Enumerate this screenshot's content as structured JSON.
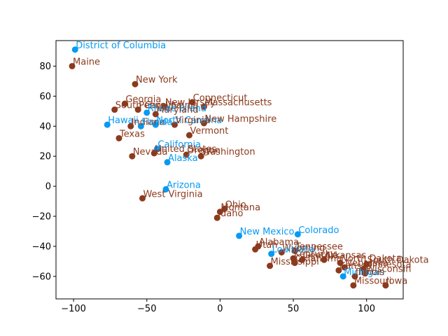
{
  "chart_data": {
    "type": "scatter",
    "title": "",
    "xlabel": "",
    "ylabel": "",
    "xlim": [
      -112,
      125
    ],
    "ylim": [
      -75,
      97
    ],
    "x_ticks": [
      -100,
      -50,
      0,
      50,
      100
    ],
    "y_ticks": [
      -60,
      -40,
      -20,
      0,
      20,
      40,
      60,
      80
    ],
    "grid": false,
    "legend": "none",
    "colors": {
      "red": "#8b3a1e",
      "blue": "#069af3"
    },
    "points": [
      {
        "label": "District of Columbia",
        "x": -99,
        "y": 91,
        "color": "blue"
      },
      {
        "label": "Maine",
        "x": -101,
        "y": 80,
        "color": "red"
      },
      {
        "label": "New York",
        "x": -58,
        "y": 68,
        "color": "red"
      },
      {
        "label": "Georgia",
        "x": -65,
        "y": 55,
        "color": "red"
      },
      {
        "label": "Connecticut",
        "x": -19,
        "y": 56,
        "color": "red"
      },
      {
        "label": "New Jersey",
        "x": -38,
        "y": 53,
        "color": "red"
      },
      {
        "label": "Massachusetts",
        "x": -11,
        "y": 53,
        "color": "red"
      },
      {
        "label": "South Carolina",
        "x": -72,
        "y": 51,
        "color": "red"
      },
      {
        "label": "Pennsylvania",
        "x": -56,
        "y": 51,
        "color": "red"
      },
      {
        "label": "Rhode Island",
        "x": -50,
        "y": 49,
        "color": "blue"
      },
      {
        "label": "Maryland",
        "x": -44,
        "y": 48,
        "color": "red"
      },
      {
        "label": "Hawaii",
        "x": -77,
        "y": 41,
        "color": "blue"
      },
      {
        "label": "Indiana",
        "x": -61,
        "y": 40,
        "color": "red"
      },
      {
        "label": "Florida",
        "x": -54,
        "y": 40,
        "color": "blue"
      },
      {
        "label": "North Carolina",
        "x": -44,
        "y": 41,
        "color": "blue"
      },
      {
        "label": "Virginia",
        "x": -31,
        "y": 41,
        "color": "red"
      },
      {
        "label": "New Hampshire",
        "x": -11,
        "y": 42,
        "color": "red"
      },
      {
        "label": "Vermont",
        "x": -21,
        "y": 34,
        "color": "red"
      },
      {
        "label": "Texas",
        "x": -69,
        "y": 32,
        "color": "red"
      },
      {
        "label": "California",
        "x": -43,
        "y": 25,
        "color": "blue"
      },
      {
        "label": "Nevada",
        "x": -60,
        "y": 20,
        "color": "red"
      },
      {
        "label": "United States",
        "x": -45,
        "y": 22,
        "color": "red"
      },
      {
        "label": "Oregon",
        "x": -23,
        "y": 21,
        "color": "red"
      },
      {
        "label": "Washington",
        "x": -13,
        "y": 20,
        "color": "red"
      },
      {
        "label": "Alaska",
        "x": -36,
        "y": 16,
        "color": "blue"
      },
      {
        "label": "Arizona",
        "x": -37,
        "y": -2,
        "color": "blue"
      },
      {
        "label": "West Virginia",
        "x": -53,
        "y": -8,
        "color": "red"
      },
      {
        "label": "Ohio",
        "x": 3,
        "y": -15,
        "color": "red"
      },
      {
        "label": "Montana",
        "x": 0,
        "y": -17,
        "color": "red"
      },
      {
        "label": "Idaho",
        "x": -2,
        "y": -21,
        "color": "red"
      },
      {
        "label": "New Mexico",
        "x": 13,
        "y": -33,
        "color": "blue"
      },
      {
        "label": "Colorado",
        "x": 53,
        "y": -32,
        "color": "blue"
      },
      {
        "label": "Alabama",
        "x": 26,
        "y": -40,
        "color": "red"
      },
      {
        "label": "Utah",
        "x": 24,
        "y": -42,
        "color": "red"
      },
      {
        "label": "Wyoming",
        "x": 42,
        "y": -44,
        "color": "red"
      },
      {
        "label": "Tennessee",
        "x": 51,
        "y": -43,
        "color": "red"
      },
      {
        "label": "Louisiana",
        "x": 35,
        "y": -45,
        "color": "blue"
      },
      {
        "label": "Kentucky",
        "x": 50,
        "y": -48,
        "color": "red"
      },
      {
        "label": "Georgia",
        "x": 56,
        "y": -49,
        "color": "red"
      },
      {
        "label": "Arkansas",
        "x": 71,
        "y": -49,
        "color": "red"
      },
      {
        "label": "Mississippi",
        "x": 34,
        "y": -53,
        "color": "red"
      },
      {
        "label": "Oklahoma",
        "x": 51,
        "y": -51,
        "color": "red"
      },
      {
        "label": "North Dakota",
        "x": 82,
        "y": -51,
        "color": "red"
      },
      {
        "label": "South Dakota",
        "x": 100,
        "y": -52,
        "color": "red"
      },
      {
        "label": "Nebraska",
        "x": 85,
        "y": -54,
        "color": "red"
      },
      {
        "label": "Minnesota",
        "x": 98,
        "y": -55,
        "color": "red"
      },
      {
        "label": "Kansas",
        "x": 81,
        "y": -56,
        "color": "red"
      },
      {
        "label": "Michigan",
        "x": 84,
        "y": -60,
        "color": "blue"
      },
      {
        "label": "Illinois",
        "x": 92,
        "y": -60,
        "color": "red"
      },
      {
        "label": "Wisconsin",
        "x": 99,
        "y": -58,
        "color": "red"
      },
      {
        "label": "Missouri",
        "x": 91,
        "y": -66,
        "color": "red"
      },
      {
        "label": "Iowa",
        "x": 113,
        "y": -66,
        "color": "red"
      }
    ]
  }
}
